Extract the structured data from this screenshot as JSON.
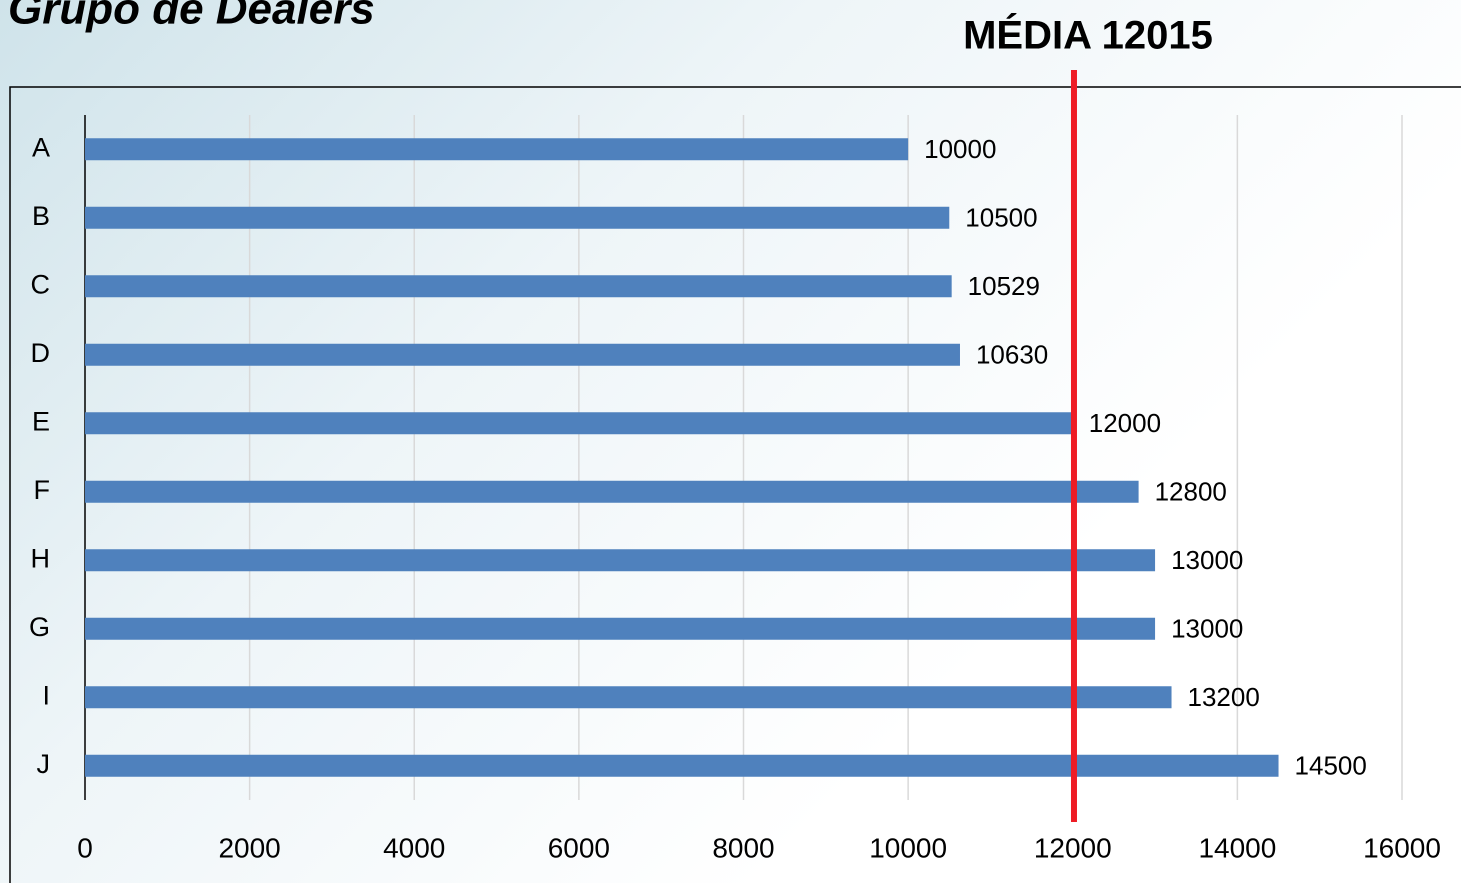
{
  "chart_data": {
    "type": "hbar",
    "title": "Grupo de Dealers",
    "categories": [
      "A",
      "B",
      "C",
      "D",
      "E",
      "F",
      "H",
      "G",
      "I",
      "J"
    ],
    "values": [
      10000,
      10500,
      10529,
      10630,
      12000,
      12800,
      13000,
      13000,
      13200,
      14500
    ],
    "color": "#4f81bd",
    "xlim": [
      0,
      16000
    ],
    "xticks": [
      0,
      2000,
      4000,
      6000,
      8000,
      10000,
      12000,
      14000,
      16000
    ],
    "grid": true,
    "reference_line": {
      "value": 12015,
      "label": "MÉDIA 12015",
      "color": "#ee1c25"
    }
  }
}
